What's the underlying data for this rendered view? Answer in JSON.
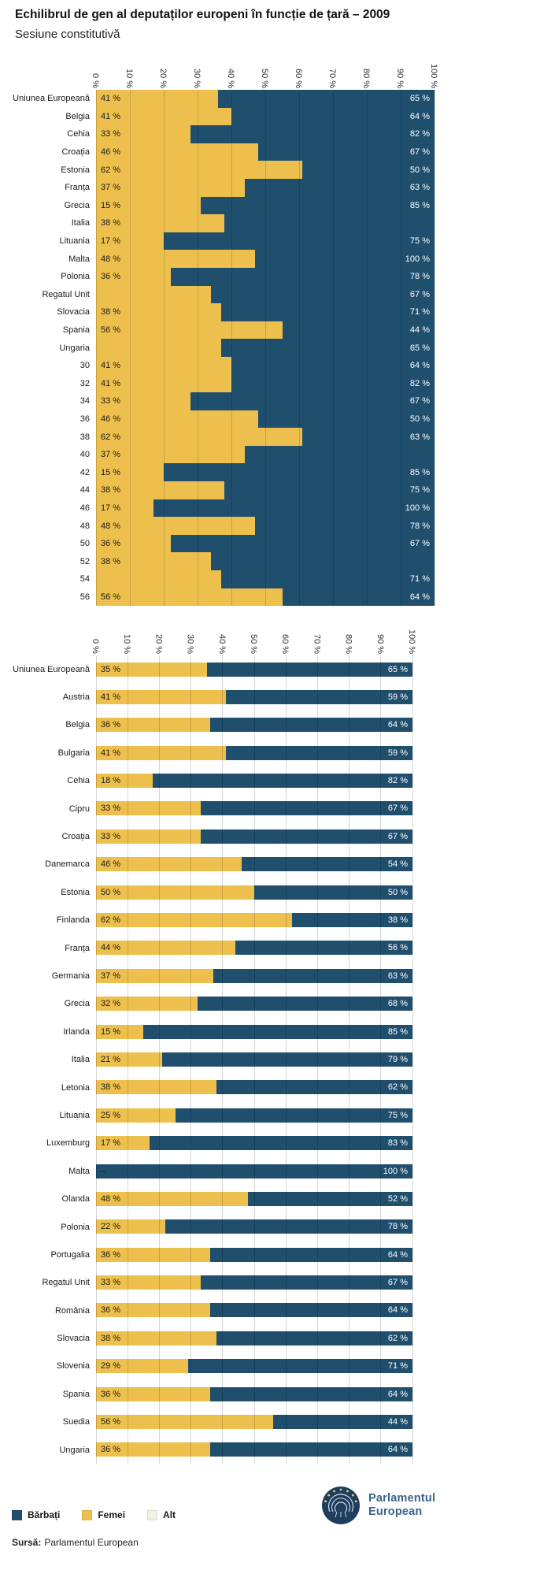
{
  "page": {
    "title": "Echilibrul de gen al deputaților europeni în funcție de țară – 2009",
    "subtitle": "Sesiune constitutivă"
  },
  "colors": {
    "barbati": "#204f6e",
    "femei": "#edc04e",
    "alt": "#f2efe7"
  },
  "legend": {
    "items": [
      {
        "key": "barbati",
        "label": "Bărbați"
      },
      {
        "key": "femei",
        "label": "Femei"
      },
      {
        "key": "alt",
        "label": "Alt"
      }
    ]
  },
  "source": {
    "label": "Sursă:",
    "value": "Parlamentul European"
  },
  "logo": {
    "line1": "Parlamentul",
    "line2": "European"
  },
  "chart_data": [
    {
      "type": "bar",
      "panel": "top",
      "orientation": "horizontal",
      "stacked": true,
      "x_range": [
        0,
        100
      ],
      "grid": true,
      "series_names": [
        "Femei",
        "Bărbați"
      ],
      "x_ticks": [
        "0 %",
        "10 %",
        "20 %",
        "30 %",
        "40 %",
        "50 %",
        "60 %",
        "70 %",
        "80 %",
        "90 %",
        "100 %"
      ],
      "rows": [
        {
          "label": "Uniunea Europeană",
          "femei_label": "41 %",
          "barbati_label": "65 %",
          "femei_bar": 36
        },
        {
          "label": "Belgia",
          "femei_label": "41 %",
          "barbati_label": "64 %",
          "femei_bar": 40
        },
        {
          "label": "Cehia",
          "femei_label": "33 %",
          "barbati_label": "82 %",
          "femei_bar": 28
        },
        {
          "label": "Croația",
          "femei_label": "46 %",
          "barbati_label": "67 %",
          "femei_bar": 48
        },
        {
          "label": "Estonia",
          "femei_label": "62 %",
          "barbati_label": "50 %",
          "femei_bar": 61
        },
        {
          "label": "Franța",
          "femei_label": "37 %",
          "barbati_label": "63 %",
          "femei_bar": 44
        },
        {
          "label": "Grecia",
          "femei_label": "15 %",
          "barbati_label": "85 %",
          "femei_bar": 31
        },
        {
          "label": "Italia",
          "femei_label": "38 %",
          "barbati_label": "",
          "femei_bar": 38
        },
        {
          "label": "Lituania",
          "femei_label": "17 %",
          "barbati_label": "75 %",
          "femei_bar": 20
        },
        {
          "label": "Malta",
          "femei_label": "48 %",
          "barbati_label": "100 %",
          "femei_bar": 47
        },
        {
          "label": "Polonia",
          "femei_label": "36 %",
          "barbati_label": "78 %",
          "femei_bar": 22
        },
        {
          "label": "Regatul Unit",
          "femei_label": "",
          "barbati_label": "67 %",
          "femei_bar": 34
        },
        {
          "label": "Slovacia",
          "femei_label": "38 %",
          "barbati_label": "71 %",
          "femei_bar": 37
        },
        {
          "label": "Spania",
          "femei_label": "56 %",
          "barbati_label": "44 %",
          "femei_bar": 55
        },
        {
          "label": "Ungaria",
          "femei_label": "",
          "barbati_label": "65 %",
          "femei_bar": 37
        },
        {
          "label": "30",
          "femei_label": "41 %",
          "barbati_label": "64 %",
          "femei_bar": 40
        },
        {
          "label": "32",
          "femei_label": "41 %",
          "barbati_label": "82 %",
          "femei_bar": 40
        },
        {
          "label": "34",
          "femei_label": "33 %",
          "barbati_label": "67 %",
          "femei_bar": 28
        },
        {
          "label": "36",
          "femei_label": "46 %",
          "barbati_label": "50 %",
          "femei_bar": 48
        },
        {
          "label": "38",
          "femei_label": "62 %",
          "barbati_label": "63 %",
          "femei_bar": 61
        },
        {
          "label": "40",
          "femei_label": "37 %",
          "barbati_label": "",
          "femei_bar": 44
        },
        {
          "label": "42",
          "femei_label": "15 %",
          "barbati_label": "85 %",
          "femei_bar": 20
        },
        {
          "label": "44",
          "femei_label": "38 %",
          "barbati_label": "75 %",
          "femei_bar": 38
        },
        {
          "label": "46",
          "femei_label": "17 %",
          "barbati_label": "100 %",
          "femei_bar": 17
        },
        {
          "label": "48",
          "femei_label": "48 %",
          "barbati_label": "78 %",
          "femei_bar": 47
        },
        {
          "label": "50",
          "femei_label": "36 %",
          "barbati_label": "67 %",
          "femei_bar": 22
        },
        {
          "label": "52",
          "femei_label": "38 %",
          "barbati_label": "",
          "femei_bar": 34
        },
        {
          "label": "54",
          "femei_label": "",
          "barbati_label": "71 %",
          "femei_bar": 37
        },
        {
          "label": "56",
          "femei_label": "56 %",
          "barbati_label": "64 %",
          "femei_bar": 55
        }
      ]
    },
    {
      "type": "bar",
      "panel": "bottom",
      "orientation": "horizontal",
      "stacked": true,
      "x_range": [
        0,
        100
      ],
      "grid": true,
      "series_names": [
        "Femei",
        "Bărbați"
      ],
      "x_ticks": [
        "0 %",
        "10 %",
        "20 %",
        "30 %",
        "40 %",
        "50 %",
        "60 %",
        "70 %",
        "80 %",
        "90 %",
        "100 %"
      ],
      "rows": [
        {
          "label": "Uniunea Europeană",
          "femei": 35,
          "barbati": 65,
          "femei_label": "35 %",
          "barbati_label": "65 %",
          "femei_bar": 35
        },
        {
          "label": "Austria",
          "femei": 41,
          "barbati": 59,
          "femei_label": "41 %",
          "barbati_label": "59 %",
          "femei_bar": 41
        },
        {
          "label": "Belgia",
          "femei": 36,
          "barbati": 64,
          "femei_label": "36 %",
          "barbati_label": "64 %",
          "femei_bar": 36
        },
        {
          "label": "Bulgaria",
          "femei": 41,
          "barbati": 59,
          "femei_label": "41 %",
          "barbati_label": "59 %",
          "femei_bar": 41
        },
        {
          "label": "Cehia",
          "femei": 18,
          "barbati": 82,
          "femei_label": "18 %",
          "barbati_label": "82 %",
          "femei_bar": 18
        },
        {
          "label": "Cipru",
          "femei": 33,
          "barbati": 67,
          "femei_label": "33 %",
          "barbati_label": "67 %",
          "femei_bar": 33
        },
        {
          "label": "Croația",
          "femei": 33,
          "barbati": 67,
          "femei_label": "33 %",
          "barbati_label": "67 %",
          "femei_bar": 33
        },
        {
          "label": "Danemarca",
          "femei": 46,
          "barbati": 54,
          "femei_label": "46 %",
          "barbati_label": "54 %",
          "femei_bar": 46
        },
        {
          "label": "Estonia",
          "femei": 50,
          "barbati": 50,
          "femei_label": "50 %",
          "barbati_label": "50 %",
          "femei_bar": 50
        },
        {
          "label": "Finlanda",
          "femei": 62,
          "barbati": 38,
          "femei_label": "62 %",
          "barbati_label": "38 %",
          "femei_bar": 62
        },
        {
          "label": "Franța",
          "femei": 44,
          "barbati": 56,
          "femei_label": "44 %",
          "barbati_label": "56 %",
          "femei_bar": 44
        },
        {
          "label": "Germania",
          "femei": 37,
          "barbati": 63,
          "femei_label": "37 %",
          "barbati_label": "63 %",
          "femei_bar": 37
        },
        {
          "label": "Grecia",
          "femei": 32,
          "barbati": 68,
          "femei_label": "32 %",
          "barbati_label": "68 %",
          "femei_bar": 32
        },
        {
          "label": "Irlanda",
          "femei": 15,
          "barbati": 85,
          "femei_label": "15 %",
          "barbati_label": "85 %",
          "femei_bar": 15
        },
        {
          "label": "Italia",
          "femei": 21,
          "barbati": 79,
          "femei_label": "21 %",
          "barbati_label": "79 %",
          "femei_bar": 21
        },
        {
          "label": "Letonia",
          "femei": 38,
          "barbati": 62,
          "femei_label": "38 %",
          "barbati_label": "62 %",
          "femei_bar": 38
        },
        {
          "label": "Lituania",
          "femei": 25,
          "barbati": 75,
          "femei_label": "25 %",
          "barbati_label": "75 %",
          "femei_bar": 25
        },
        {
          "label": "Luxemburg",
          "femei": 17,
          "barbati": 83,
          "femei_label": "17 %",
          "barbati_label": "83 %",
          "femei_bar": 17
        },
        {
          "label": "Malta",
          "femei": 0,
          "barbati": 100,
          "femei_label": "–",
          "barbati_label": "100 %",
          "femei_bar": 0
        },
        {
          "label": "Olanda",
          "femei": 48,
          "barbati": 52,
          "femei_label": "48 %",
          "barbati_label": "52 %",
          "femei_bar": 48
        },
        {
          "label": "Polonia",
          "femei": 22,
          "barbati": 78,
          "femei_label": "22 %",
          "barbati_label": "78 %",
          "femei_bar": 22
        },
        {
          "label": "Portugalia",
          "femei": 36,
          "barbati": 64,
          "femei_label": "36 %",
          "barbati_label": "64 %",
          "femei_bar": 36
        },
        {
          "label": "Regatul Unit",
          "femei": 33,
          "barbati": 67,
          "femei_label": "33 %",
          "barbati_label": "67 %",
          "femei_bar": 33
        },
        {
          "label": "România",
          "femei": 36,
          "barbati": 64,
          "femei_label": "36 %",
          "barbati_label": "64 %",
          "femei_bar": 36
        },
        {
          "label": "Slovacia",
          "femei": 38,
          "barbati": 62,
          "femei_label": "38 %",
          "barbati_label": "62 %",
          "femei_bar": 38
        },
        {
          "label": "Slovenia",
          "femei": 29,
          "barbati": 71,
          "femei_label": "29 %",
          "barbati_label": "71 %",
          "femei_bar": 29
        },
        {
          "label": "Spania",
          "femei": 36,
          "barbati": 64,
          "femei_label": "36 %",
          "barbati_label": "64 %",
          "femei_bar": 36
        },
        {
          "label": "Suedia",
          "femei": 56,
          "barbati": 44,
          "femei_label": "56 %",
          "barbati_label": "44 %",
          "femei_bar": 56
        },
        {
          "label": "Ungaria",
          "femei": 36,
          "barbati": 64,
          "femei_label": "36 %",
          "barbati_label": "64 %",
          "femei_bar": 36
        }
      ]
    }
  ]
}
